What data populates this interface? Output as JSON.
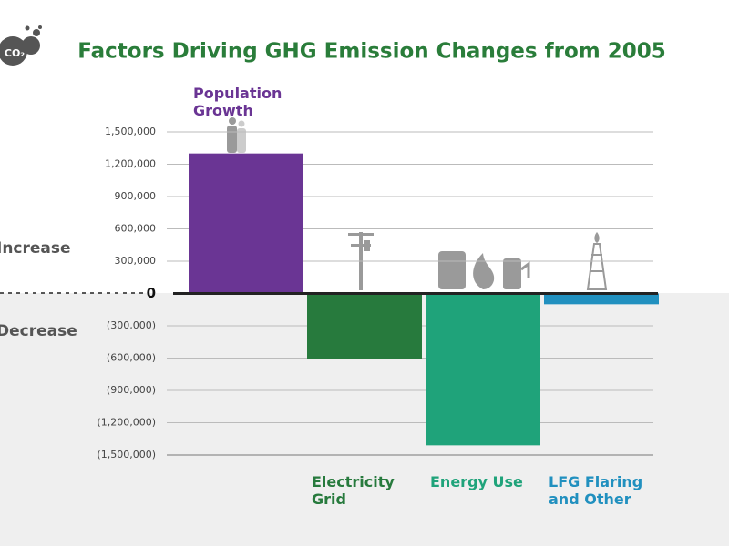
{
  "logo_text": "CO₂",
  "chart_data": {
    "type": "bar",
    "title": "Factors Driving GHG Emission Changes from 2005",
    "categories": [
      "Population Growth",
      "Electricity Grid",
      "Energy Use",
      "LFG Flaring and Other"
    ],
    "values": [
      1300000,
      -610000,
      -1410000,
      -100000
    ],
    "colors": [
      "#6a3594",
      "#277a3d",
      "#1fa37a",
      "#2190bf"
    ],
    "ylim": [
      -1500000,
      1500000
    ],
    "yticks": [
      {
        "value": 1500000,
        "label": "1,500,000"
      },
      {
        "value": 1200000,
        "label": "1,200,000"
      },
      {
        "value": 900000,
        "label": "900,000"
      },
      {
        "value": 600000,
        "label": "600,000"
      },
      {
        "value": 300000,
        "label": "300,000"
      },
      0,
      {
        "value": -300000,
        "label": "(300,000)"
      },
      {
        "value": -600000,
        "label": "(600,000)"
      },
      {
        "value": -900000,
        "label": "(900,000)"
      },
      {
        "value": -1200000,
        "label": "(1,200,000)"
      },
      {
        "value": -1500000,
        "label": "(1,500,000)"
      }
    ],
    "grid": true,
    "annotations": [
      "Increase",
      "Decrease"
    ]
  }
}
